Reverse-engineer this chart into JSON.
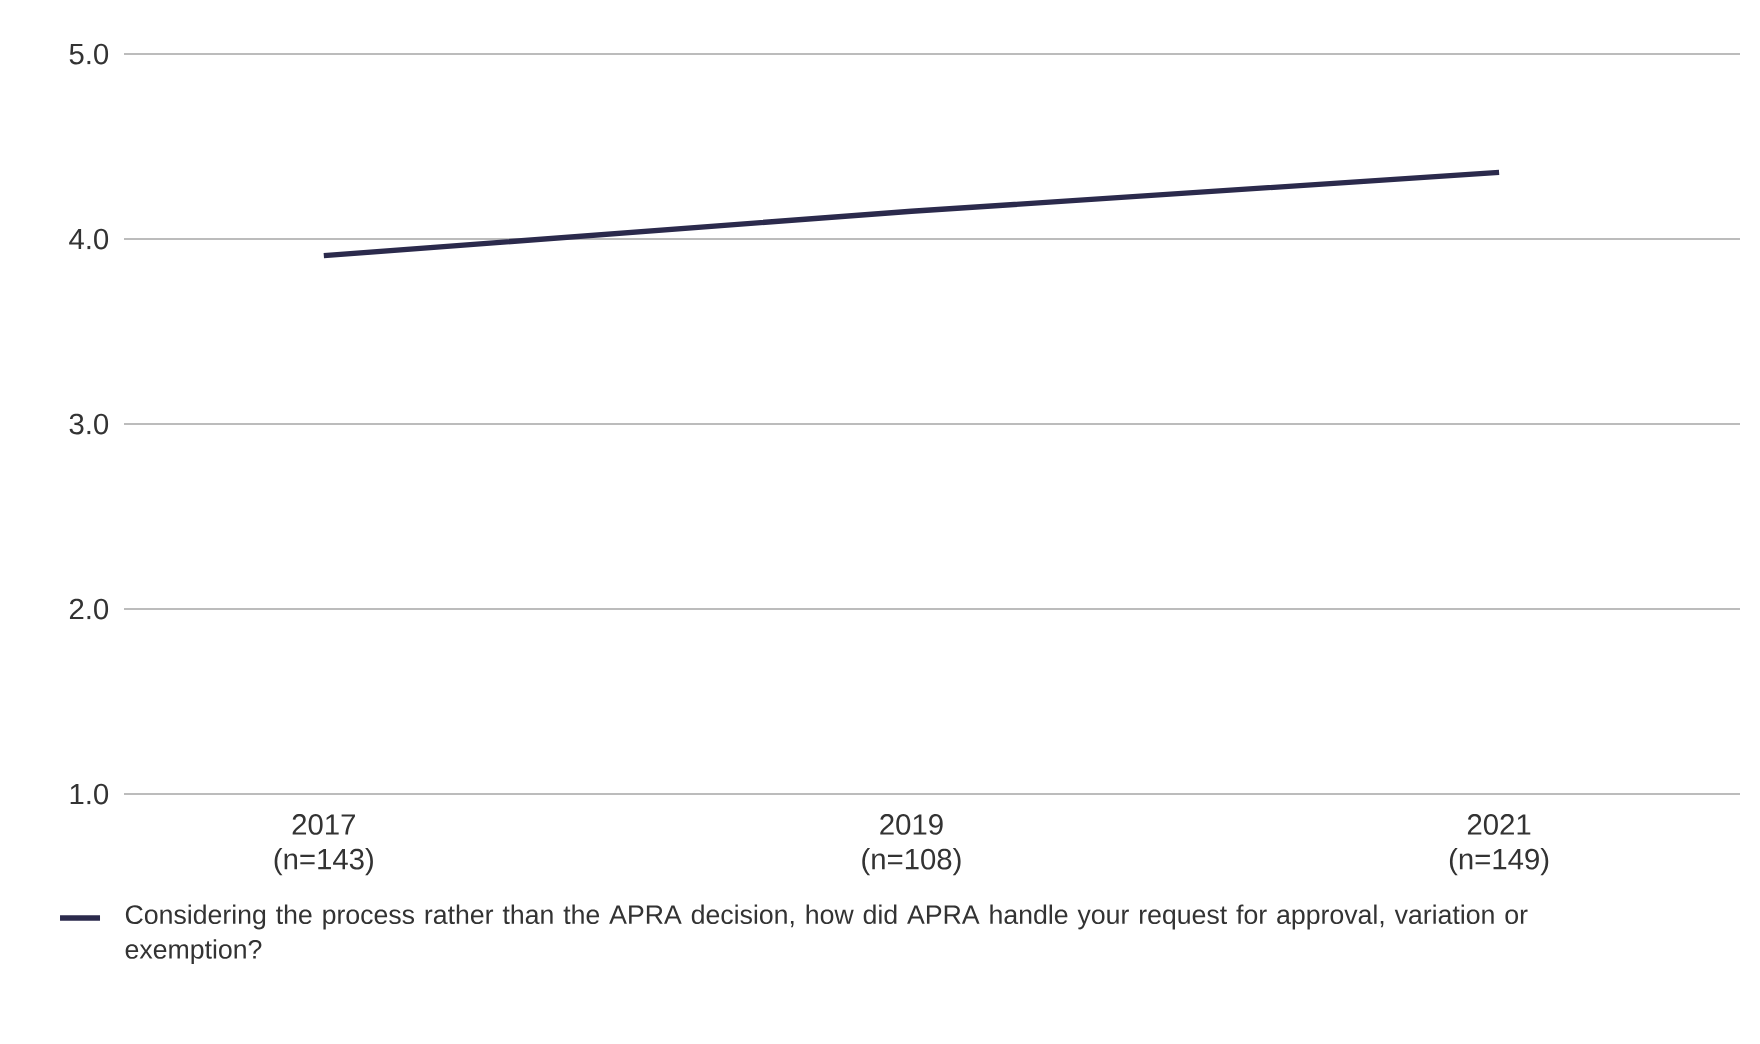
{
  "chart_data": {
    "type": "line",
    "categories": [
      "2017 (n=143)",
      "2019 (n=108)",
      "2021 (n=149)"
    ],
    "series": [
      {
        "name": "Considering the process rather than the APRA decision, how did APRA handle your request for approval, variation or exemption?",
        "color": "#2b2a4c",
        "values": [
          3.91,
          4.15,
          4.36
        ]
      }
    ],
    "ylim": [
      1,
      5
    ],
    "yticks": [
      {
        "value": 1,
        "label": "1.0"
      },
      {
        "value": 2,
        "label": "2.0"
      },
      {
        "value": 3,
        "label": "3.0"
      },
      {
        "value": 4,
        "label": "4.0"
      },
      {
        "value": 5,
        "label": "5.0"
      }
    ],
    "grid": "y",
    "legend": "bottom",
    "marker": "none",
    "line_style": "solid"
  }
}
